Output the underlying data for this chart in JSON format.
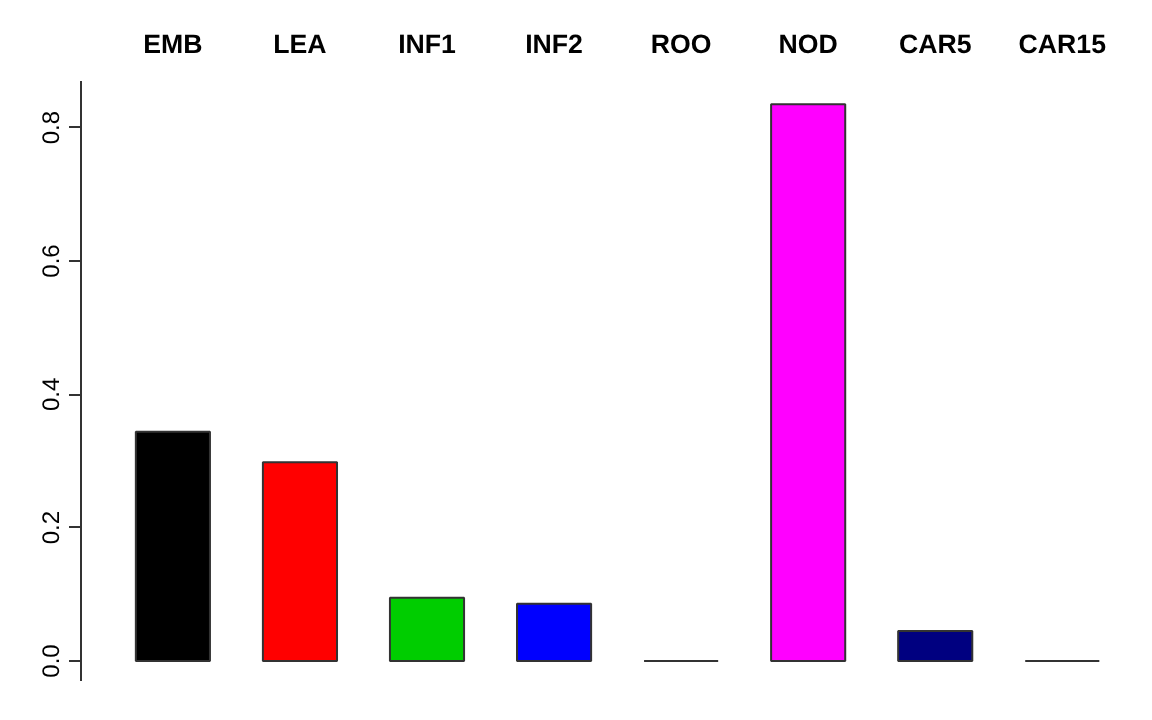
{
  "chart_data": {
    "type": "bar",
    "categories": [
      "EMB",
      "LEA",
      "INF1",
      "INF2",
      "ROO",
      "NOD",
      "CAR5",
      "CAR15"
    ],
    "values": [
      0.344,
      0.298,
      0.095,
      0.086,
      0,
      0.835,
      0.045,
      0
    ],
    "colors": [
      "#000000",
      "#ff0000",
      "#00cd00",
      "#0000ff",
      "#333333",
      "#ff00ff",
      "#000080",
      "#333333"
    ],
    "ylim": [
      -0.03,
      0.87
    ],
    "yticks": [
      {
        "value": 0,
        "label": "0.0"
      },
      {
        "value": 0.2,
        "label": "0.2"
      },
      {
        "value": 0.4,
        "label": "0.4"
      },
      {
        "value": 0.6,
        "label": "0.6"
      },
      {
        "value": 0.8,
        "label": "0.8"
      }
    ],
    "grid": false
  }
}
